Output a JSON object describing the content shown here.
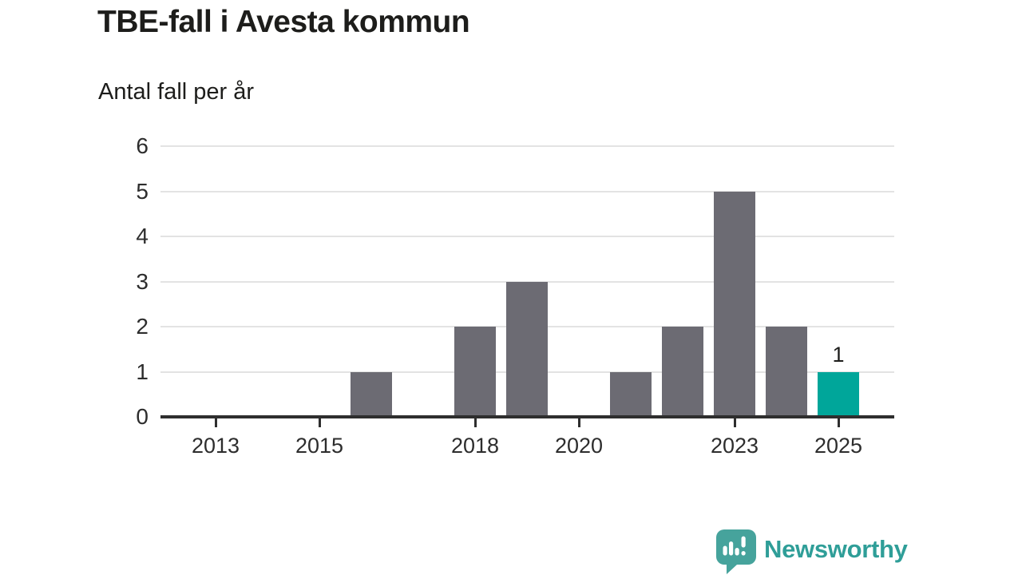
{
  "header": {
    "title": "TBE-fall i Avesta kommun",
    "subtitle": "Antal fall per år"
  },
  "chart_data": {
    "type": "bar",
    "title": "TBE-fall i Avesta kommun",
    "subtitle": "Antal fall per år",
    "categories": [
      "2013",
      "2014",
      "2015",
      "2016",
      "2017",
      "2018",
      "2019",
      "2020",
      "2021",
      "2022",
      "2023",
      "2024",
      "2025"
    ],
    "values": [
      0,
      0,
      0,
      1,
      0,
      2,
      3,
      0,
      1,
      2,
      5,
      2,
      1
    ],
    "highlight_category": "2025",
    "highlight_value_label": "1",
    "x_tick_labels": [
      "2013",
      "2015",
      "2018",
      "2020",
      "2023",
      "2025"
    ],
    "y_ticks": [
      0,
      1,
      2,
      3,
      4,
      5,
      6
    ],
    "ylim": [
      0,
      6
    ],
    "xlabel": "",
    "ylabel": "Antal fall per år",
    "grid": true,
    "legend_position": "none",
    "colors": {
      "bar": "#6c6b73",
      "highlight_bar": "#00a69a",
      "gridline": "#e3e3e3",
      "axis": "#2e2e2e",
      "tick_label": "#2d2d2d"
    }
  },
  "branding": {
    "logo_text": "Newsworthy",
    "logo_text_color": "#2f9e98",
    "logo_icon_color": "#46a39c",
    "logo_icon": "speech-bubble-bar-chart-exclamation"
  }
}
